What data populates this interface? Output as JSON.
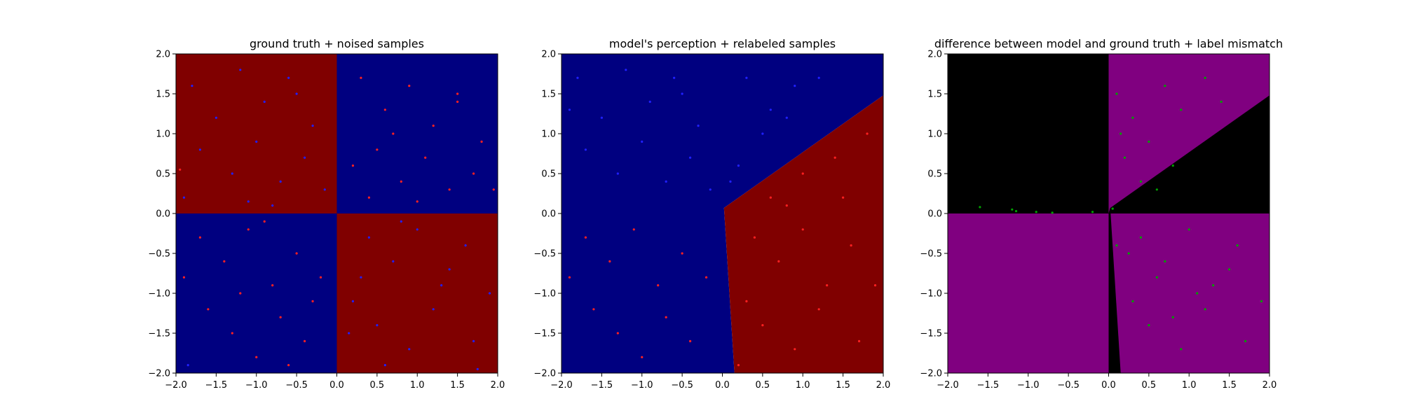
{
  "chart_data": [
    {
      "type": "scatter",
      "title": "ground truth + noised samples",
      "xlim": [
        -2.0,
        2.0
      ],
      "ylim": [
        -2.0,
        2.0
      ],
      "xticks": [
        "−2.0",
        "−1.5",
        "−1.0",
        "−0.5",
        "0.0",
        "0.5",
        "1.0",
        "1.5",
        "2.0"
      ],
      "yticks": [
        "−2.0",
        "−1.5",
        "−1.0",
        "−0.5",
        "0.0",
        "0.5",
        "1.0",
        "1.5",
        "2.0"
      ],
      "grid": false,
      "background_regions": [
        {
          "color": "#800000",
          "x": [
            -2.0,
            0.0
          ],
          "y": [
            0.0,
            2.0
          ]
        },
        {
          "color": "#000080",
          "x": [
            0.0,
            2.0
          ],
          "y": [
            0.0,
            2.0
          ]
        },
        {
          "color": "#000080",
          "x": [
            -2.0,
            0.0
          ],
          "y": [
            -2.0,
            0.0
          ]
        },
        {
          "color": "#800000",
          "x": [
            0.0,
            2.0
          ],
          "y": [
            -2.0,
            0.0
          ]
        }
      ],
      "series": [
        {
          "color": "#2020ff",
          "points": [
            [
              -1.8,
              1.6
            ],
            [
              -1.5,
              1.2
            ],
            [
              -1.2,
              1.8
            ],
            [
              -0.9,
              1.4
            ],
            [
              -0.6,
              1.7
            ],
            [
              -0.3,
              1.1
            ],
            [
              -1.7,
              0.8
            ],
            [
              -1.3,
              0.5
            ],
            [
              -1.0,
              0.9
            ],
            [
              -0.7,
              0.4
            ],
            [
              -0.4,
              0.7
            ],
            [
              -0.15,
              0.3
            ],
            [
              -1.9,
              0.2
            ],
            [
              -1.1,
              0.15
            ],
            [
              -0.5,
              1.5
            ],
            [
              -0.8,
              0.1
            ],
            [
              0.4,
              -0.3
            ],
            [
              0.7,
              -0.6
            ],
            [
              1.0,
              -0.2
            ],
            [
              1.3,
              -0.9
            ],
            [
              1.6,
              -0.4
            ],
            [
              0.2,
              -1.1
            ],
            [
              0.5,
              -1.4
            ],
            [
              0.9,
              -1.7
            ],
            [
              1.2,
              -1.2
            ],
            [
              1.7,
              -1.6
            ],
            [
              0.3,
              -0.8
            ],
            [
              0.6,
              -1.9
            ],
            [
              1.4,
              -0.7
            ],
            [
              1.9,
              -1.0
            ],
            [
              0.8,
              -0.1
            ],
            [
              0.15,
              -1.5
            ],
            [
              -1.85,
              -1.9
            ],
            [
              1.75,
              -1.95
            ]
          ]
        },
        {
          "color": "#ff2020",
          "points": [
            [
              0.3,
              1.7
            ],
            [
              0.6,
              1.3
            ],
            [
              0.9,
              1.6
            ],
            [
              1.2,
              1.1
            ],
            [
              1.5,
              1.4
            ],
            [
              1.8,
              0.9
            ],
            [
              0.2,
              0.6
            ],
            [
              0.5,
              0.8
            ],
            [
              0.8,
              0.4
            ],
            [
              1.1,
              0.7
            ],
            [
              1.4,
              0.3
            ],
            [
              1.7,
              0.5
            ],
            [
              0.4,
              0.2
            ],
            [
              0.7,
              1.0
            ],
            [
              1.0,
              0.15
            ],
            [
              1.95,
              0.3
            ],
            [
              -1.7,
              -0.3
            ],
            [
              -1.4,
              -0.6
            ],
            [
              -1.1,
              -0.2
            ],
            [
              -0.8,
              -0.9
            ],
            [
              -0.5,
              -0.5
            ],
            [
              -0.2,
              -0.8
            ],
            [
              -1.6,
              -1.2
            ],
            [
              -1.3,
              -1.5
            ],
            [
              -1.0,
              -1.8
            ],
            [
              -0.7,
              -1.3
            ],
            [
              -0.4,
              -1.6
            ],
            [
              -1.9,
              -0.8
            ],
            [
              -0.9,
              -0.1
            ],
            [
              -0.3,
              -1.1
            ],
            [
              -1.2,
              -1.0
            ],
            [
              -0.6,
              -1.9
            ],
            [
              1.5,
              1.5
            ],
            [
              -1.95,
              0.55
            ]
          ]
        }
      ]
    },
    {
      "type": "scatter",
      "title": "model's perception + relabeled samples",
      "xlim": [
        -2.0,
        2.0
      ],
      "ylim": [
        -2.0,
        2.0
      ],
      "xticks": [
        "−2.0",
        "−1.5",
        "−1.0",
        "−0.5",
        "0.0",
        "0.5",
        "1.0",
        "1.5",
        "2.0"
      ],
      "yticks": [
        "−2.0",
        "−1.5",
        "−1.0",
        "−0.5",
        "0.0",
        "0.5",
        "1.0",
        "1.5",
        "2.0"
      ],
      "grid": false,
      "background_regions": [
        {
          "color": "#000080",
          "polygon": [
            [
              -2.0,
              -2.0
            ],
            [
              0.15,
              -2.0
            ],
            [
              0.02,
              0.07
            ],
            [
              2.0,
              1.48
            ],
            [
              2.0,
              2.0
            ],
            [
              -2.0,
              2.0
            ]
          ]
        },
        {
          "color": "#800000",
          "polygon": [
            [
              0.15,
              -2.0
            ],
            [
              2.0,
              -2.0
            ],
            [
              2.0,
              1.48
            ],
            [
              0.02,
              0.07
            ]
          ]
        }
      ],
      "series": [
        {
          "color": "#2020ff",
          "points": [
            [
              -1.8,
              1.7
            ],
            [
              -1.5,
              1.2
            ],
            [
              -1.2,
              1.8
            ],
            [
              -0.9,
              1.4
            ],
            [
              -0.6,
              1.7
            ],
            [
              -0.3,
              1.1
            ],
            [
              -1.7,
              0.8
            ],
            [
              -1.3,
              0.5
            ],
            [
              -1.0,
              0.9
            ],
            [
              -0.7,
              0.4
            ],
            [
              -0.4,
              0.7
            ],
            [
              -0.15,
              0.3
            ],
            [
              0.3,
              1.7
            ],
            [
              0.6,
              1.3
            ],
            [
              0.9,
              1.6
            ],
            [
              0.2,
              0.6
            ],
            [
              0.5,
              1.0
            ],
            [
              1.2,
              1.7
            ],
            [
              0.1,
              0.4
            ],
            [
              -0.5,
              1.5
            ],
            [
              -1.9,
              1.3
            ],
            [
              0.8,
              1.2
            ]
          ]
        },
        {
          "color": "#ff2020",
          "points": [
            [
              0.4,
              -0.3
            ],
            [
              0.7,
              -0.6
            ],
            [
              1.0,
              -0.2
            ],
            [
              1.3,
              -0.9
            ],
            [
              1.6,
              -0.4
            ],
            [
              0.3,
              -1.1
            ],
            [
              0.5,
              -1.4
            ],
            [
              0.9,
              -1.7
            ],
            [
              1.2,
              -1.2
            ],
            [
              1.7,
              -1.6
            ],
            [
              0.6,
              0.2
            ],
            [
              1.0,
              0.5
            ],
            [
              1.4,
              0.7
            ],
            [
              1.8,
              1.0
            ],
            [
              0.8,
              0.1
            ],
            [
              -1.7,
              -0.3
            ],
            [
              -1.4,
              -0.6
            ],
            [
              -1.1,
              -0.2
            ],
            [
              -0.8,
              -0.9
            ],
            [
              -0.5,
              -0.5
            ],
            [
              -0.2,
              -0.8
            ],
            [
              -1.6,
              -1.2
            ],
            [
              -1.3,
              -1.5
            ],
            [
              -1.0,
              -1.8
            ],
            [
              -0.7,
              -1.3
            ],
            [
              -0.4,
              -1.6
            ],
            [
              -1.9,
              -0.8
            ],
            [
              0.2,
              -1.9
            ],
            [
              1.5,
              0.2
            ],
            [
              1.9,
              -0.9
            ]
          ]
        }
      ]
    },
    {
      "type": "scatter",
      "title": "difference between model and ground truth + label mismatch",
      "xlim": [
        -2.0,
        2.0
      ],
      "ylim": [
        -2.0,
        2.0
      ],
      "xticks": [
        "−2.0",
        "−1.5",
        "−1.0",
        "−0.5",
        "0.0",
        "0.5",
        "1.0",
        "1.5",
        "2.0"
      ],
      "yticks": [
        "−2.0",
        "−1.5",
        "−1.0",
        "−0.5",
        "0.0",
        "0.5",
        "1.0",
        "1.5",
        "2.0"
      ],
      "grid": false,
      "background_regions": [
        {
          "color": "#800080",
          "polygon": [
            [
              -2.0,
              -2.0
            ],
            [
              2.0,
              -2.0
            ],
            [
              2.0,
              2.0
            ],
            [
              -2.0,
              2.0
            ]
          ]
        },
        {
          "color": "#000000",
          "polygon": [
            [
              -2.0,
              0.0
            ],
            [
              0.0,
              0.0
            ],
            [
              0.0,
              2.0
            ],
            [
              -2.0,
              2.0
            ]
          ]
        },
        {
          "color": "#000000",
          "polygon": [
            [
              0.0,
              0.0
            ],
            [
              2.0,
              0.0
            ],
            [
              2.0,
              1.48
            ],
            [
              0.02,
              0.07
            ]
          ]
        },
        {
          "color": "#000000",
          "polygon": [
            [
              0.0,
              0.0
            ],
            [
              0.0,
              -2.0
            ],
            [
              0.15,
              -2.0
            ],
            [
              0.02,
              0.07
            ]
          ]
        }
      ],
      "series": [
        {
          "color": "#00a000",
          "points": [
            [
              0.1,
              1.5
            ],
            [
              0.3,
              1.2
            ],
            [
              0.5,
              0.9
            ],
            [
              0.7,
              1.6
            ],
            [
              0.9,
              1.3
            ],
            [
              0.2,
              0.7
            ],
            [
              0.4,
              0.4
            ],
            [
              0.6,
              0.3
            ],
            [
              0.8,
              0.6
            ],
            [
              1.2,
              1.7
            ],
            [
              0.15,
              1.0
            ],
            [
              1.4,
              1.4
            ],
            [
              0.4,
              -0.3
            ],
            [
              0.7,
              -0.6
            ],
            [
              1.0,
              -0.2
            ],
            [
              1.3,
              -0.9
            ],
            [
              1.6,
              -0.4
            ],
            [
              0.3,
              -1.1
            ],
            [
              0.5,
              -1.4
            ],
            [
              0.9,
              -1.7
            ],
            [
              1.2,
              -1.2
            ],
            [
              1.7,
              -1.6
            ],
            [
              0.6,
              -0.8
            ],
            [
              1.1,
              -1.0
            ],
            [
              1.5,
              -0.7
            ],
            [
              0.8,
              -1.3
            ],
            [
              0.25,
              -0.5
            ],
            [
              1.9,
              -1.1
            ],
            [
              -1.6,
              0.08
            ],
            [
              -1.2,
              0.05
            ],
            [
              -1.15,
              0.03
            ],
            [
              -0.9,
              0.02
            ],
            [
              -0.7,
              0.01
            ],
            [
              -0.2,
              0.02
            ],
            [
              0.05,
              0.06
            ],
            [
              0.1,
              -0.4
            ]
          ]
        }
      ]
    }
  ]
}
